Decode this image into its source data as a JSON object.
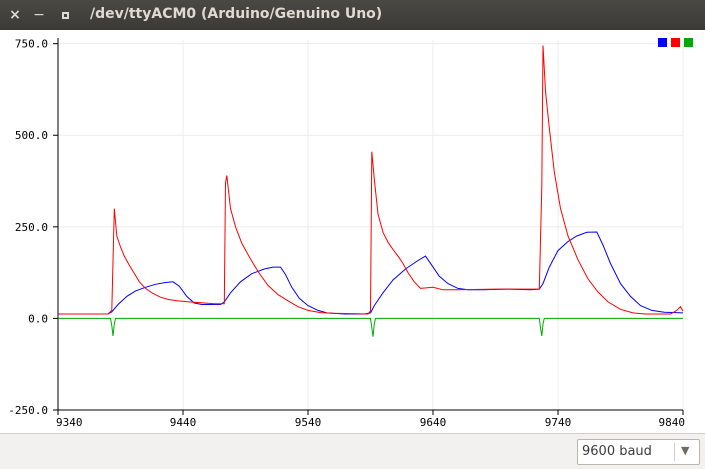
{
  "window": {
    "title": "/dev/ttyACM0 (Arduino/Genuino Uno)",
    "buttons": {
      "close": "×",
      "minimize": "−"
    }
  },
  "baud_select": {
    "value": "9600 baud",
    "arrow": "▼"
  },
  "chart_data": {
    "type": "line",
    "x_ticks": [
      "9340",
      "9440",
      "9540",
      "9640",
      "9740",
      "9840"
    ],
    "y_ticks": [
      "750.0",
      "500.0",
      "250.0",
      "0.0",
      "-250.0"
    ],
    "xlim": [
      9340,
      9840
    ],
    "ylim": [
      -250,
      760
    ],
    "grid": true,
    "legend": "top-right",
    "series": [
      {
        "color": "#0000ff",
        "points": [
          [
            9340,
            12
          ],
          [
            9380,
            12
          ],
          [
            9383,
            18
          ],
          [
            9388,
            38
          ],
          [
            9395,
            60
          ],
          [
            9402,
            75
          ],
          [
            9410,
            85
          ],
          [
            9418,
            93
          ],
          [
            9426,
            98
          ],
          [
            9432,
            100
          ],
          [
            9437,
            88
          ],
          [
            9443,
            60
          ],
          [
            9449,
            42
          ],
          [
            9455,
            38
          ],
          [
            9465,
            38
          ],
          [
            9470,
            38
          ],
          [
            9473,
            45
          ],
          [
            9478,
            70
          ],
          [
            9486,
            100
          ],
          [
            9495,
            122
          ],
          [
            9505,
            135
          ],
          [
            9512,
            140
          ],
          [
            9518,
            140
          ],
          [
            9522,
            120
          ],
          [
            9527,
            85
          ],
          [
            9533,
            55
          ],
          [
            9540,
            35
          ],
          [
            9548,
            22
          ],
          [
            9555,
            15
          ],
          [
            9566,
            13
          ],
          [
            9570,
            12
          ],
          [
            9585,
            12
          ],
          [
            9590,
            15
          ],
          [
            9593,
            35
          ],
          [
            9600,
            70
          ],
          [
            9608,
            105
          ],
          [
            9618,
            135
          ],
          [
            9628,
            158
          ],
          [
            9634,
            170
          ],
          [
            9639,
            145
          ],
          [
            9645,
            115
          ],
          [
            9652,
            95
          ],
          [
            9660,
            82
          ],
          [
            9668,
            78
          ],
          [
            9680,
            78
          ],
          [
            9700,
            80
          ],
          [
            9718,
            78
          ],
          [
            9725,
            80
          ],
          [
            9728,
            95
          ],
          [
            9733,
            140
          ],
          [
            9740,
            185
          ],
          [
            9748,
            210
          ],
          [
            9755,
            225
          ],
          [
            9763,
            235
          ],
          [
            9771,
            236
          ],
          [
            9776,
            200
          ],
          [
            9782,
            150
          ],
          [
            9790,
            95
          ],
          [
            9798,
            60
          ],
          [
            9806,
            35
          ],
          [
            9815,
            22
          ],
          [
            9825,
            17
          ],
          [
            9840,
            15
          ]
        ]
      },
      {
        "color": "#ff0000",
        "points": [
          [
            9340,
            12
          ],
          [
            9380,
            12
          ],
          [
            9383,
            22
          ],
          [
            9385,
            300
          ],
          [
            9387,
            225
          ],
          [
            9390,
            195
          ],
          [
            9393,
            170
          ],
          [
            9397,
            145
          ],
          [
            9401,
            123
          ],
          [
            9405,
            100
          ],
          [
            9410,
            82
          ],
          [
            9416,
            68
          ],
          [
            9422,
            58
          ],
          [
            9428,
            52
          ],
          [
            9435,
            48
          ],
          [
            9445,
            45
          ],
          [
            9465,
            40
          ],
          [
            9473,
            40
          ],
          [
            9474,
            370
          ],
          [
            9475,
            390
          ],
          [
            9478,
            300
          ],
          [
            9482,
            250
          ],
          [
            9487,
            205
          ],
          [
            9493,
            168
          ],
          [
            9500,
            128
          ],
          [
            9508,
            90
          ],
          [
            9516,
            65
          ],
          [
            9524,
            48
          ],
          [
            9532,
            32
          ],
          [
            9540,
            22
          ],
          [
            9550,
            16
          ],
          [
            9560,
            14
          ],
          [
            9588,
            12
          ],
          [
            9590,
            20
          ],
          [
            9591,
            455
          ],
          [
            9593,
            380
          ],
          [
            9596,
            285
          ],
          [
            9600,
            235
          ],
          [
            9604,
            208
          ],
          [
            9608,
            188
          ],
          [
            9612,
            170
          ],
          [
            9616,
            150
          ],
          [
            9620,
            125
          ],
          [
            9625,
            100
          ],
          [
            9630,
            82
          ],
          [
            9640,
            85
          ],
          [
            9648,
            78
          ],
          [
            9660,
            78
          ],
          [
            9690,
            80
          ],
          [
            9725,
            80
          ],
          [
            9727,
            360
          ],
          [
            9728,
            745
          ],
          [
            9730,
            620
          ],
          [
            9733,
            520
          ],
          [
            9737,
            400
          ],
          [
            9742,
            300
          ],
          [
            9748,
            225
          ],
          [
            9756,
            160
          ],
          [
            9764,
            108
          ],
          [
            9772,
            72
          ],
          [
            9780,
            45
          ],
          [
            9790,
            25
          ],
          [
            9800,
            15
          ],
          [
            9810,
            12
          ],
          [
            9830,
            12
          ],
          [
            9835,
            22
          ],
          [
            9838,
            32
          ],
          [
            9840,
            20
          ]
        ]
      },
      {
        "color": "#00aa00",
        "points": [
          [
            9340,
            0
          ],
          [
            9382,
            0
          ],
          [
            9383,
            -20
          ],
          [
            9384,
            -48
          ],
          [
            9385,
            -15
          ],
          [
            9386,
            0
          ],
          [
            9590,
            0
          ],
          [
            9591,
            -25
          ],
          [
            9592,
            -50
          ],
          [
            9593,
            -15
          ],
          [
            9594,
            0
          ],
          [
            9725,
            0
          ],
          [
            9726,
            -25
          ],
          [
            9727,
            -48
          ],
          [
            9728,
            -15
          ],
          [
            9729,
            0
          ],
          [
            9840,
            0
          ]
        ]
      }
    ]
  },
  "legend_colors": [
    "#0000ff",
    "#ff0000",
    "#00aa00"
  ]
}
